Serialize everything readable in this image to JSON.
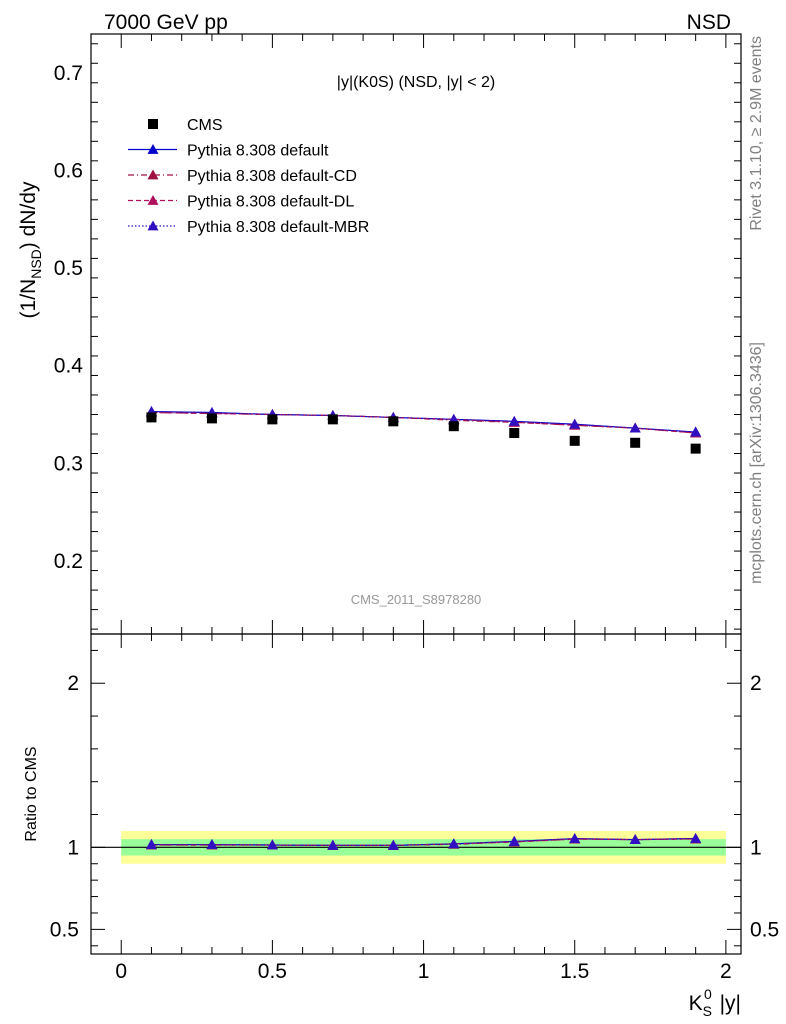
{
  "header": {
    "left": "7000 GeV pp",
    "right": "NSD"
  },
  "side_text": {
    "rivet": "Rivet 3.1.10, ≥ 2.9M events",
    "mcplots": "mcplots.cern.ch [arXiv:1306.3436]"
  },
  "chart_data": [
    {
      "type": "line",
      "title": "|y|(K0S) (NSD, |y| < 2)",
      "ylabel": "(1/N_NSD) dN/dy",
      "xlabel": "K_S^0 |y|",
      "watermark": "CMS_2011_S8978280",
      "xlim": [
        -0.1,
        2.05
      ],
      "ylim": [
        0.125,
        0.74
      ],
      "x_ticks": [
        "0",
        "0.5",
        "1",
        "1.5",
        "2"
      ],
      "y_ticks": [
        "0.2",
        "0.3",
        "0.4",
        "0.5",
        "0.6",
        "0.7"
      ],
      "legend_position": "top-left",
      "x": [
        0.1,
        0.3,
        0.5,
        0.7,
        0.9,
        1.1,
        1.3,
        1.5,
        1.7,
        1.9
      ],
      "data": {
        "name": "CMS",
        "marker": "square",
        "color": "#000000",
        "values": [
          0.347,
          0.346,
          0.345,
          0.345,
          0.343,
          0.338,
          0.331,
          0.323,
          0.321,
          0.315
        ]
      },
      "series": [
        {
          "name": "Pythia 8.308 default",
          "color": "#0000cc",
          "dash": "solid",
          "values": [
            0.353,
            0.352,
            0.35,
            0.349,
            0.347,
            0.345,
            0.343,
            0.34,
            0.336,
            0.332
          ]
        },
        {
          "name": "Pythia 8.308 default-CD",
          "color": "#a01040",
          "dash": "dashdot",
          "values": [
            0.352,
            0.351,
            0.35,
            0.349,
            0.347,
            0.344,
            0.342,
            0.339,
            0.336,
            0.331
          ]
        },
        {
          "name": "Pythia 8.308 default-DL",
          "color": "#b0105a",
          "dash": "dashed",
          "values": [
            0.352,
            0.351,
            0.35,
            0.349,
            0.347,
            0.345,
            0.342,
            0.339,
            0.336,
            0.331
          ]
        },
        {
          "name": "Pythia 8.308 default-MBR",
          "color": "#3010c0",
          "dash": "dotted",
          "values": [
            0.353,
            0.352,
            0.35,
            0.349,
            0.347,
            0.345,
            0.343,
            0.34,
            0.336,
            0.332
          ]
        }
      ]
    },
    {
      "type": "line",
      "ylabel": "Ratio to CMS",
      "xlabel": "K_S^0 |y|",
      "xlim": [
        -0.1,
        2.05
      ],
      "ylim": [
        0.35,
        2.3
      ],
      "x_ticks": [
        "0",
        "0.5",
        "1",
        "1.5",
        "2"
      ],
      "y_ticks": [
        "0.5",
        "1",
        "2"
      ],
      "bands": [
        {
          "name": "total uncertainty",
          "color": "#ffff99",
          "range": [
            0.9,
            1.1
          ]
        },
        {
          "name": "stat uncertainty",
          "color": "#99ff99",
          "range": [
            0.95,
            1.05
          ]
        }
      ],
      "reference": 1.0,
      "x": [
        0.1,
        0.3,
        0.5,
        0.7,
        0.9,
        1.1,
        1.3,
        1.5,
        1.7,
        1.9
      ],
      "series": [
        {
          "name": "Pythia 8.308 default",
          "values": [
            1.017,
            1.017,
            1.014,
            1.012,
            1.012,
            1.021,
            1.036,
            1.053,
            1.047,
            1.054
          ]
        },
        {
          "name": "Pythia 8.308 default-CD",
          "values": [
            1.014,
            1.014,
            1.014,
            1.012,
            1.012,
            1.018,
            1.033,
            1.05,
            1.047,
            1.051
          ]
        },
        {
          "name": "Pythia 8.308 default-DL",
          "values": [
            1.014,
            1.014,
            1.014,
            1.012,
            1.012,
            1.021,
            1.033,
            1.05,
            1.047,
            1.051
          ]
        },
        {
          "name": "Pythia 8.308 default-MBR",
          "values": [
            1.017,
            1.017,
            1.014,
            1.012,
            1.012,
            1.021,
            1.036,
            1.053,
            1.047,
            1.054
          ]
        }
      ]
    }
  ]
}
